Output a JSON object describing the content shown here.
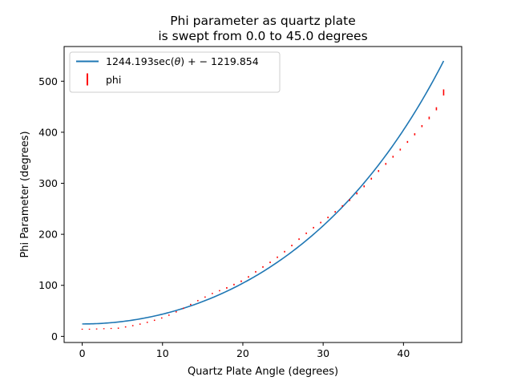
{
  "colors": {
    "curve": "#1f77b4",
    "points": "#ff0000",
    "background": "#ffffff",
    "axes": "#000000",
    "legend_border": "#cccccc"
  },
  "chart_data": {
    "type": "scatter",
    "title": [
      "Phi parameter as quartz plate",
      "is swept from 0.0 to 45.0 degrees"
    ],
    "xlabel": "Quartz Plate Angle (degrees)",
    "ylabel": "Phi Parameter (degrees)",
    "xlim": [
      -2.25,
      47.25
    ],
    "ylim": [
      -12,
      568
    ],
    "xticks": [
      0,
      10,
      20,
      30,
      40
    ],
    "yticks": [
      0,
      100,
      200,
      300,
      400,
      500
    ],
    "xtick_labels": [
      "0",
      "10",
      "20",
      "30",
      "40"
    ],
    "ytick_labels": [
      "0",
      "100",
      "200",
      "300",
      "400",
      "500"
    ],
    "grid": false,
    "legend_position": "upper-left",
    "fit": {
      "label_parts": [
        "1244.193sec(",
        "θ",
        ")",
        "+ − 1219.854"
      ],
      "model": "a*sec(theta)+b",
      "a": 1244.193,
      "b": -1219.854,
      "x_range": [
        0,
        45
      ]
    },
    "series": [
      {
        "name": "phi",
        "x": [
          0,
          0.9,
          1.8,
          2.7,
          3.6,
          4.5,
          5.4,
          6.3,
          7.2,
          8.1,
          9.0,
          9.9,
          10.8,
          11.7,
          12.6,
          13.5,
          14.4,
          15.3,
          16.2,
          17.1,
          18.0,
          18.9,
          19.8,
          20.7,
          21.6,
          22.5,
          23.4,
          24.3,
          25.2,
          26.1,
          27.0,
          27.9,
          28.8,
          29.7,
          30.6,
          31.5,
          32.4,
          33.3,
          34.2,
          35.1,
          36.0,
          36.9,
          37.8,
          38.7,
          39.6,
          40.5,
          41.4,
          42.3,
          43.2,
          44.1,
          45.0
        ],
        "y": [
          14,
          14,
          14.5,
          15,
          15.5,
          16,
          18.5,
          21,
          24,
          27.5,
          31.5,
          36,
          41.5,
          48,
          55,
          62.5,
          70,
          77,
          84,
          89.5,
          95,
          101.5,
          108,
          116.5,
          126.5,
          136,
          145,
          155,
          166,
          178,
          190.5,
          202,
          213,
          223,
          233,
          244,
          255.5,
          267,
          280,
          294,
          309,
          324,
          338,
          352,
          366,
          381,
          396,
          412,
          428,
          446,
          478
        ],
        "err": [
          1,
          1,
          1,
          1,
          1,
          1.2,
          1.2,
          1.2,
          1.2,
          1.2,
          1.2,
          1.2,
          1.2,
          1.2,
          1.2,
          1.2,
          1.2,
          1.2,
          1.2,
          1.2,
          1.5,
          1.5,
          1.5,
          1.5,
          1.5,
          1.5,
          1.5,
          1.5,
          1.5,
          1.5,
          1.5,
          1.5,
          1.5,
          1.5,
          1.5,
          1.5,
          1.5,
          1.8,
          1.8,
          1.8,
          1.8,
          1.8,
          1.8,
          1.8,
          1.8,
          1.8,
          2,
          2,
          2.5,
          3,
          6
        ]
      }
    ]
  }
}
